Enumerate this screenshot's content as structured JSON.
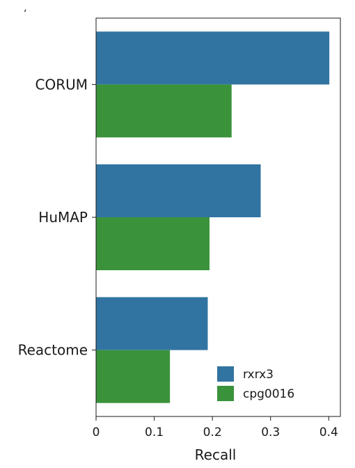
{
  "corner_mark": "‘",
  "chart_data": {
    "type": "bar",
    "orientation": "horizontal",
    "categories": [
      "CORUM",
      "HuMAP",
      "Reactome"
    ],
    "series": [
      {
        "name": "rxrx3",
        "values": [
          0.401,
          0.283,
          0.192
        ],
        "color": "#3274a1"
      },
      {
        "name": "cpg0016",
        "values": [
          0.233,
          0.195,
          0.127
        ],
        "color": "#3a923a"
      }
    ],
    "xlabel": "Recall",
    "ylabel": "",
    "xlim": [
      0,
      0.42
    ],
    "xticks": [
      "0",
      "0.1",
      "0.2",
      "0.3",
      "0.4"
    ],
    "grid": false,
    "legend_position": "bottom-right"
  }
}
